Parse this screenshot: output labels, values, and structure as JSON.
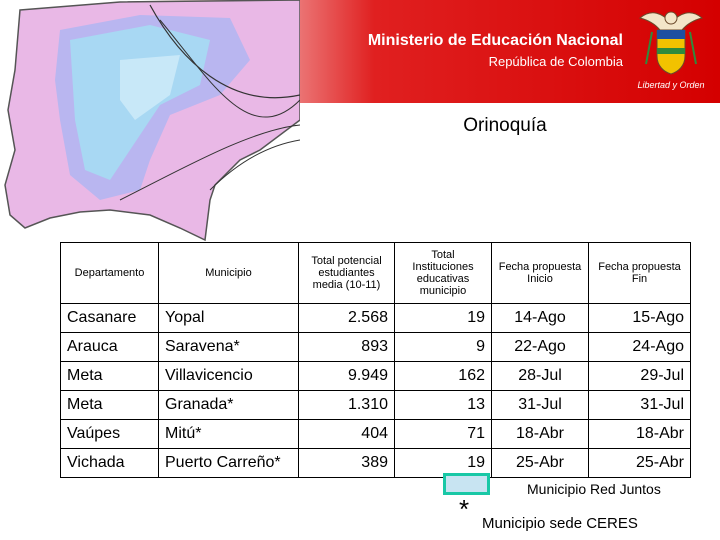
{
  "header": {
    "ministry": "Ministerio de Educación Nacional",
    "republica": "República de Colombia",
    "motto": "Libertad y Orden"
  },
  "region_title": "Orinoquía",
  "table": {
    "columns": [
      "Departamento",
      "Municipio",
      "Total potencial estudiantes media (10-11)",
      "Total Instituciones educativas municipio",
      "Fecha propuesta Inicio",
      "Fecha propuesta Fin"
    ],
    "rows": [
      [
        "Casanare",
        "Yopal",
        "2.568",
        "19",
        "14-Ago",
        "15-Ago"
      ],
      [
        "Arauca",
        "Saravena*",
        "893",
        "9",
        "22-Ago",
        "24-Ago"
      ],
      [
        "Meta",
        "Villavicencio",
        "9.949",
        "162",
        "28-Jul",
        "29-Jul"
      ],
      [
        "Meta",
        "Granada*",
        "1.310",
        "13",
        "31-Jul",
        "31-Jul"
      ],
      [
        "Vaúpes",
        "Mitú*",
        "404",
        "71",
        "18-Abr",
        "18-Abr"
      ],
      [
        "Vichada",
        "Puerto Carreño*",
        "389",
        "19",
        "25-Abr",
        "25-Abr"
      ]
    ]
  },
  "legend": {
    "red_juntos": "Municipio Red Juntos",
    "star": "*",
    "ceres": "Municipio sede CERES",
    "box_fill": "#c8e4f2",
    "box_border": "#19c8a6"
  },
  "colors": {
    "header_red": "#d40000"
  }
}
